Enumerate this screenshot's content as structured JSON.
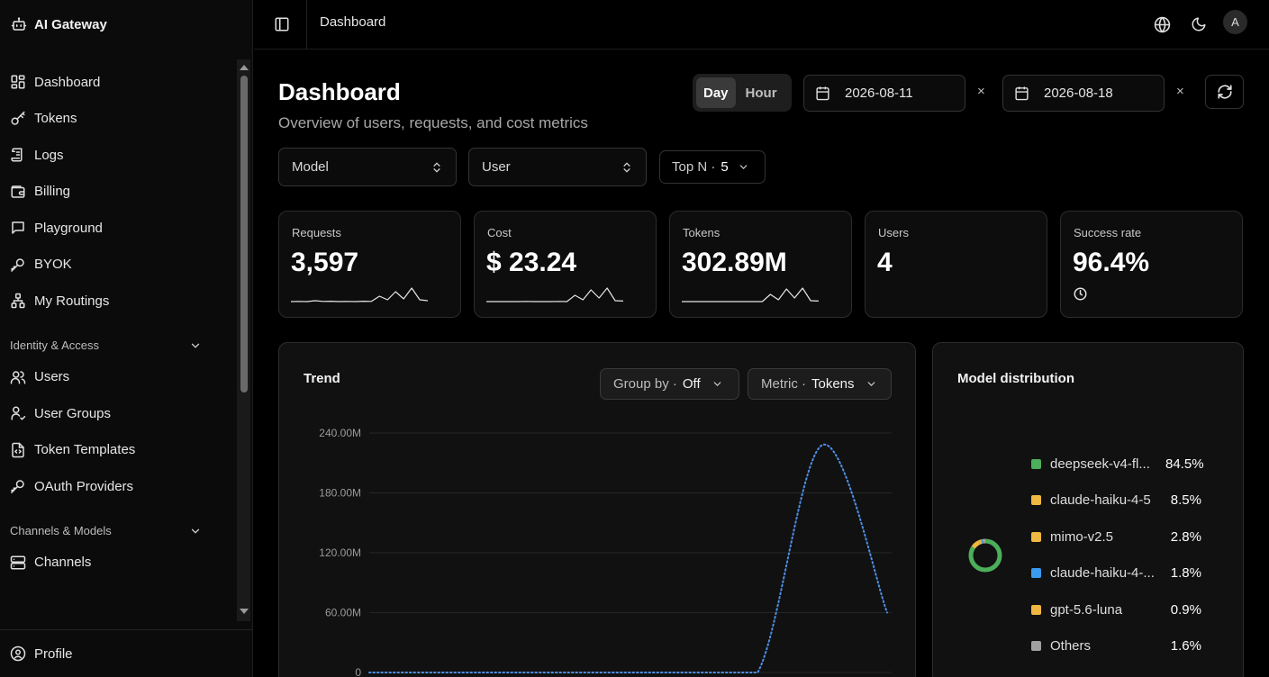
{
  "app": {
    "title": "AI Gateway"
  },
  "sidebar": {
    "items": [
      {
        "label": "Dashboard",
        "icon": "grid-icon"
      },
      {
        "label": "Tokens",
        "icon": "key-icon"
      },
      {
        "label": "Logs",
        "icon": "logs-icon"
      },
      {
        "label": "Billing",
        "icon": "wallet-icon"
      },
      {
        "label": "Playground",
        "icon": "chat-icon"
      },
      {
        "label": "BYOK",
        "icon": "key-round-icon"
      },
      {
        "label": "My Routings",
        "icon": "network-icon"
      }
    ],
    "sections": [
      {
        "label": "Identity & Access",
        "items": [
          {
            "label": "Users",
            "icon": "users-icon"
          },
          {
            "label": "User Groups",
            "icon": "user-group-icon"
          },
          {
            "label": "Token Templates",
            "icon": "template-icon"
          },
          {
            "label": "OAuth Providers",
            "icon": "key-round-icon"
          }
        ]
      },
      {
        "label": "Channels & Models",
        "items": [
          {
            "label": "Channels",
            "icon": "server-icon"
          }
        ]
      }
    ],
    "profile": {
      "label": "Profile",
      "icon": "user-circle-icon"
    }
  },
  "topbar": {
    "breadcrumb": "Dashboard",
    "avatar_initial": "A"
  },
  "header": {
    "title": "Dashboard",
    "subtitle": "Overview of users, requests, and cost metrics",
    "granularity": {
      "options": [
        "Day",
        "Hour"
      ],
      "selected": "Day"
    },
    "start_date": "2026-08-11",
    "end_date": "2026-08-18",
    "clear_glyph": "×"
  },
  "filters": {
    "model_placeholder": "Model",
    "user_placeholder": "User",
    "topn_label": "Top N ·",
    "topn_value": "5"
  },
  "stats": [
    {
      "label": "Requests",
      "value": "3,597",
      "spark": [
        0.05,
        0.06,
        0.05,
        0.1,
        0.06,
        0.07,
        0.05,
        0.06,
        0.05,
        0.07,
        0.06,
        0.35,
        0.15,
        0.6,
        0.2,
        0.8,
        0.15,
        0.1
      ]
    },
    {
      "label": "Cost",
      "value": "$ 23.24",
      "spark": [
        0.05,
        0.05,
        0.05,
        0.05,
        0.05,
        0.06,
        0.05,
        0.05,
        0.05,
        0.06,
        0.05,
        0.4,
        0.15,
        0.7,
        0.25,
        0.8,
        0.1,
        0.08
      ]
    },
    {
      "label": "Tokens",
      "value": "302.89M",
      "spark": [
        0.05,
        0.05,
        0.05,
        0.05,
        0.05,
        0.05,
        0.05,
        0.05,
        0.05,
        0.05,
        0.05,
        0.45,
        0.15,
        0.75,
        0.25,
        0.8,
        0.1,
        0.08
      ]
    },
    {
      "label": "Users",
      "value": "4"
    },
    {
      "label": "Success rate",
      "value": "96.4%",
      "icon": "clock-icon"
    }
  ],
  "trend": {
    "title": "Trend",
    "group_by_label": "Group by ·",
    "group_by_value": "Off",
    "metric_label": "Metric ·",
    "metric_value": "Tokens"
  },
  "chart_data": {
    "type": "line",
    "yticks": [
      "240.00M",
      "180.00M",
      "120.00M",
      "60.00M",
      "0"
    ],
    "ylim": [
      0,
      240000000
    ],
    "x": [
      0,
      1,
      2,
      3,
      4,
      5,
      6,
      7,
      8
    ],
    "series": [
      {
        "values": [
          0,
          0,
          0,
          0,
          0,
          0,
          0,
          228000000,
          60000000
        ],
        "color": "#4f8fe6"
      }
    ],
    "grid": true
  },
  "distribution": {
    "title": "Model distribution",
    "items": [
      {
        "name": "deepseek-v4-fl...",
        "pct": "84.5%",
        "value": 84.5,
        "color": "#4caf5a"
      },
      {
        "name": "claude-haiku-4-5",
        "pct": "8.5%",
        "value": 8.5,
        "color": "#f0b840"
      },
      {
        "name": "mimo-v2.5",
        "pct": "2.8%",
        "value": 2.8,
        "color": "#f0b840"
      },
      {
        "name": "claude-haiku-4-...",
        "pct": "1.8%",
        "value": 1.8,
        "color": "#3a9af0"
      },
      {
        "name": "gpt-5.6-luna",
        "pct": "0.9%",
        "value": 0.9,
        "color": "#f0b840"
      },
      {
        "name": "Others",
        "pct": "1.6%",
        "value": 1.6,
        "color": "#a0a0a0"
      }
    ]
  }
}
